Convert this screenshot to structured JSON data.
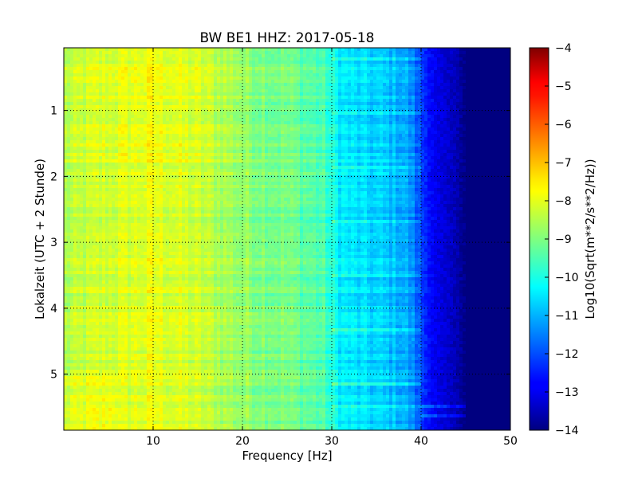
{
  "chart_data": {
    "type": "heatmap",
    "title": "BW BE1 HHZ: 2017-05-18",
    "xlabel": "Frequency [Hz]",
    "ylabel": "Lokalzeit (UTC + 2 Stunde)",
    "xlim": [
      0,
      50
    ],
    "ylim": [
      5.85,
      0.05
    ],
    "x_ticks": [
      10,
      20,
      30,
      40,
      50
    ],
    "x_tick_labels": [
      "10",
      "20",
      "30",
      "40",
      "50"
    ],
    "y_ticks": [
      1,
      2,
      3,
      4,
      5
    ],
    "y_tick_labels": [
      "1",
      "2",
      "3",
      "4",
      "5"
    ],
    "grid": true,
    "colormap": "jet",
    "colorbar": {
      "label": "Log10(Sqrt(m**2/s**2/Hz))",
      "range": [
        -14,
        -4
      ],
      "ticks": [
        -4,
        -5,
        -6,
        -7,
        -8,
        -9,
        -10,
        -11,
        -12,
        -13,
        -14
      ],
      "tick_labels": [
        "−4",
        "−5",
        "−6",
        "−7",
        "−8",
        "−9",
        "−10",
        "−11",
        "−12",
        "−13",
        "−14"
      ]
    },
    "spectrum_profile": {
      "frequency_hz": [
        0,
        2,
        5,
        8,
        10,
        12,
        15,
        18,
        20,
        25,
        29,
        30,
        31,
        33,
        36,
        38,
        39,
        40,
        41,
        42,
        44,
        45,
        50
      ],
      "log10_amplitude": [
        -8.6,
        -8.4,
        -8.2,
        -8.1,
        -8.0,
        -8.1,
        -8.3,
        -8.6,
        -8.8,
        -9.1,
        -9.5,
        -10.0,
        -10.4,
        -10.6,
        -10.8,
        -11.0,
        -11.4,
        -12.1,
        -12.7,
        -13.0,
        -13.5,
        -14.0,
        -14.0
      ]
    }
  }
}
